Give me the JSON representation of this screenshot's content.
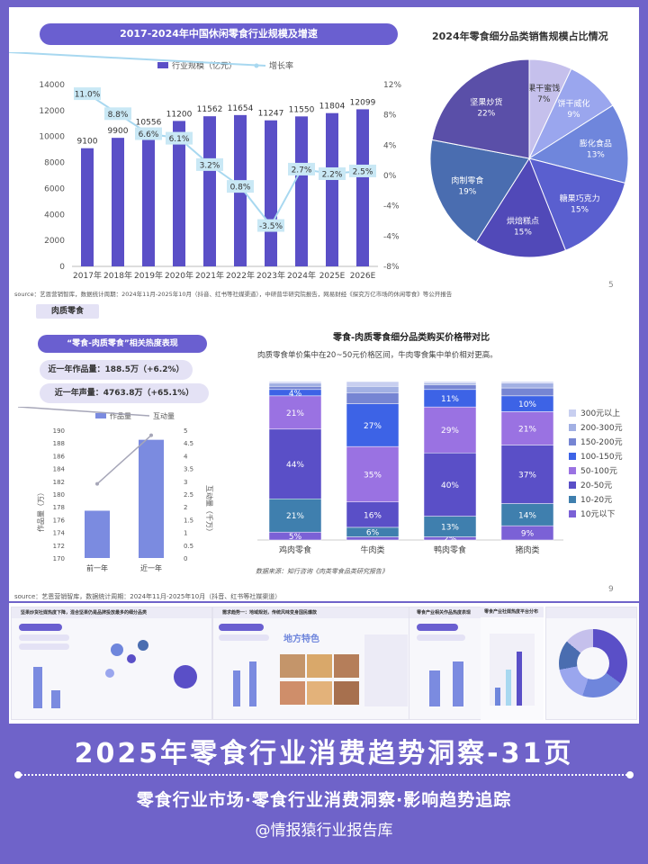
{
  "page1": {
    "chart1": {
      "title": "2017-2024年中国休闲零食行业规模及增速",
      "legend_bar": "行业规模（亿元）",
      "legend_line": "增长率",
      "y_left_ticks": [
        "0",
        "2000",
        "4000",
        "6000",
        "8000",
        "10000",
        "12000",
        "14000"
      ],
      "y_right_ticks": [
        "-8%",
        "-4%",
        "-4%",
        "0%",
        "4%",
        "8%",
        "12%"
      ],
      "chart_data": {
        "type": "bar",
        "categories": [
          "2017年",
          "2018年",
          "2019年",
          "2020年",
          "2021年",
          "2022年",
          "2023年",
          "2024年",
          "2025E",
          "2026E"
        ],
        "series": [
          {
            "name": "行业规模（亿元）",
            "values": [
              9100,
              9900,
              10556,
              11200,
              11562,
              11654,
              11247,
              11550,
              11804,
              12099
            ]
          },
          {
            "name": "增长率",
            "values": [
              11.0,
              8.8,
              6.6,
              6.1,
              3.2,
              0.8,
              -3.5,
              2.7,
              2.2,
              2.5
            ],
            "labels": [
              "11.0%",
              "8.8%",
              "6.6%",
              "6.1%",
              "3.2%",
              "0.8%",
              "-3.5%",
              "2.7%",
              "2.2%",
              "2.5%"
            ]
          }
        ],
        "ylim": [
          0,
          14000
        ],
        "y2lim": [
          -8,
          12
        ]
      }
    },
    "chart2": {
      "title": "2024年零食细分品类销售规模占比情况",
      "chart_data": {
        "type": "pie",
        "slices": [
          {
            "label": "果干蜜饯",
            "value": 7,
            "pct": "7%",
            "color": "#c5c0ec"
          },
          {
            "label": "饼干威化",
            "value": 9,
            "pct": "9%",
            "color": "#9aa6ee"
          },
          {
            "label": "膨化食品",
            "value": 13,
            "pct": "13%",
            "color": "#6f86dc"
          },
          {
            "label": "糖果巧克力",
            "value": 15,
            "pct": "15%",
            "color": "#5a5fcf"
          },
          {
            "label": "烘焙糕点",
            "value": 15,
            "pct": "15%",
            "color": "#5149b8"
          },
          {
            "label": "肉制零食",
            "value": 19,
            "pct": "19%",
            "color": "#4a6db0"
          },
          {
            "label": "坚果炒货",
            "value": 22,
            "pct": "22%",
            "color": "#5a4fa8"
          }
        ]
      }
    },
    "source": "source：艺恩营销智库，数据统计周期：2024年11月-2025年10月（抖音、红书等社媒渠道），中研普华研究院报告，网易财经《探究万亿市场的休闲零食》等公开报告",
    "page_number": "5"
  },
  "page2": {
    "section_tab": "肉质零食",
    "left_title": "“零食-肉质零食”相关热度表现",
    "stat1": "近一年作品量：188.5万（+6.2%）",
    "stat2": "近一年声量：4763.8万（+65.1%）",
    "legend_bar": "作品量",
    "legend_line": "互动量",
    "y_left_label": "作品量（万）",
    "y_right_label": "互动量（千万）",
    "y_left_ticks": [
      "170",
      "172",
      "174",
      "176",
      "178",
      "180",
      "182",
      "184",
      "186",
      "188",
      "190"
    ],
    "y_right_ticks": [
      "0",
      "0.5",
      "1",
      "1.5",
      "2",
      "2.5",
      "3",
      "3.5",
      "4",
      "4.5",
      "5"
    ],
    "chart_data": {
      "type": "bar",
      "categories": [
        "前一年",
        "近一年"
      ],
      "series": [
        {
          "name": "作品量",
          "values": [
            177.4,
            188.5
          ]
        },
        {
          "name": "互动量",
          "values": [
            2.9,
            4.8
          ]
        }
      ],
      "ylim": [
        170,
        190
      ],
      "y2lim": [
        0,
        5
      ]
    },
    "right_title": "零食-肉质零食细分品类购买价格带对比",
    "right_subtitle": "肉质零食单价集中在20~50元价格区间，牛肉零食集中单价相对更高。",
    "stack": {
      "chart_data": {
        "type": "bar",
        "categories": [
          "鸡肉零食",
          "牛肉类",
          "鸭肉零食",
          "猪肉类"
        ],
        "series": [
          {
            "name": "10元以下",
            "color": "#7b61d6",
            "values": [
              5,
              2,
              2,
              9
            ]
          },
          {
            "name": "10-20元",
            "color": "#3f7fae",
            "values": [
              21,
              6,
              13,
              14
            ]
          },
          {
            "name": "20-50元",
            "color": "#5a4fc7",
            "values": [
              44,
              16,
              40,
              37
            ]
          },
          {
            "name": "50-100元",
            "color": "#9a72e2",
            "values": [
              21,
              35,
              29,
              21
            ]
          },
          {
            "name": "100-150元",
            "color": "#3d63e6",
            "values": [
              4,
              27,
              11,
              10
            ]
          },
          {
            "name": "150-200元",
            "color": "#7685d3",
            "values": [
              2,
              7,
              3,
              5
            ]
          },
          {
            "name": "200-300元",
            "color": "#a2b0e3",
            "values": [
              2,
              4,
              1,
              3
            ]
          },
          {
            "name": "300元以上",
            "color": "#c8cff0",
            "values": [
              1,
              3,
              1,
              1
            ]
          }
        ],
        "labels": [
          [
            "5%",
            "21%",
            "44%",
            "21%",
            "4%"
          ],
          [
            "",
            "6%",
            "16%",
            "35%",
            "27%"
          ],
          [
            "2%",
            "13%",
            "40%",
            "29%",
            "11%"
          ],
          [
            "9%",
            "14%",
            "37%",
            "21%",
            "10%"
          ]
        ],
        "ylim": [
          0,
          100
        ]
      }
    },
    "data_source": "数据来源：知行咨询《肉类零食品类研究报告》",
    "source": "source：艺恩营销智库，数据统计周期：2024年11月-2025年10月（抖音、红书等社媒渠道）",
    "page_number": "9"
  },
  "thumbnails": [
    {
      "title": "坚果炒货社媒热度下降，混合坚果仍是品牌投放最多的细分品类"
    },
    {
      "title": "需求趋势一：地域规划，传统风味变身国民爆款",
      "overlay": "地方特色"
    },
    {
      "title": "零食产业相关作品热度表现"
    },
    {
      "title": "零食产业社媒热度平台分布"
    }
  ],
  "footer": {
    "main_title": "2025年零食行业消费趋势洞察-31页",
    "subtitle": "零食行业市场·零食行业消费洞察·影响趋势追踪",
    "handle": "@情报猿行业报告库"
  },
  "colors": {
    "background": "#6f63c9",
    "accent": "#5a4fc7",
    "line": "#a8d8f0"
  }
}
